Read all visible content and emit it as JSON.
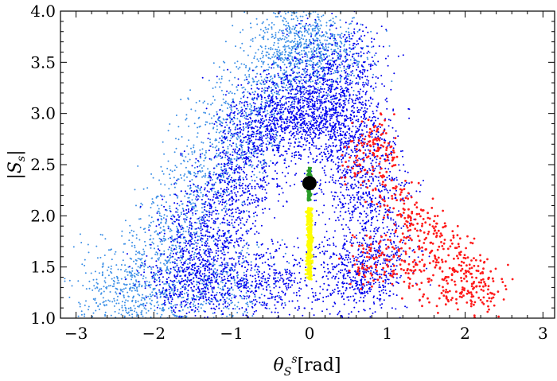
{
  "chart_data": {
    "type": "scatter",
    "title": "",
    "xlabel": {
      "symbol": "θ",
      "sub": "S",
      "sup": "s",
      "unit": "[rad]"
    },
    "ylabel": {
      "prefix": "|",
      "symbol": "S",
      "sub": "s",
      "suffix": "|"
    },
    "xlim": [
      -3.2,
      3.15
    ],
    "ylim": [
      1.0,
      4.0
    ],
    "xticks": [
      -3,
      -2,
      -1,
      0,
      1,
      2,
      3
    ],
    "xtick_labels": [
      "−3",
      "−2",
      "−1",
      "0",
      "1",
      "2",
      "3"
    ],
    "yticks": [
      1.0,
      1.5,
      2.0,
      2.5,
      3.0,
      3.5,
      4.0
    ],
    "ytick_labels": [
      "1.0",
      "1.5",
      "2.0",
      "2.5",
      "3.0",
      "3.5",
      "4.0"
    ],
    "grid": false,
    "legend": "none",
    "series": [
      {
        "color": "#3a8ee6",
        "marker": "dot",
        "description_points": [
          [
            -2.45,
            1.1
          ],
          [
            -2.3,
            1.35
          ],
          [
            -1.8,
            1.7
          ],
          [
            -1.5,
            2.1
          ],
          [
            -1.2,
            2.5
          ],
          [
            -0.9,
            2.85
          ],
          [
            -0.6,
            3.2
          ],
          [
            -0.3,
            3.55
          ],
          [
            -0.05,
            3.75
          ],
          [
            0.1,
            3.7
          ],
          [
            0.2,
            3.5
          ],
          [
            -1.7,
            1.25
          ],
          [
            -1.0,
            1.3
          ]
        ]
      },
      {
        "color": "#0000ee",
        "marker": "dot",
        "description_points": [
          [
            -1.6,
            1.4
          ],
          [
            -1.3,
            1.9
          ],
          [
            -1.0,
            2.3
          ],
          [
            -0.7,
            2.75
          ],
          [
            -0.4,
            3.0
          ],
          [
            -0.1,
            3.1
          ],
          [
            0.2,
            3.0
          ],
          [
            0.5,
            2.6
          ],
          [
            0.7,
            2.2
          ],
          [
            0.75,
            1.6
          ],
          [
            0.6,
            1.35
          ],
          [
            -0.5,
            1.35
          ],
          [
            -1.2,
            1.45
          ],
          [
            0.45,
            2.95
          ],
          [
            0.4,
            3.5
          ]
        ]
      },
      {
        "color": "#ff1a1a",
        "marker": "dot",
        "description_points": [
          [
            0.7,
            2.45
          ],
          [
            0.8,
            2.75
          ],
          [
            0.9,
            2.65
          ],
          [
            1.1,
            2.2
          ],
          [
            1.3,
            2.0
          ],
          [
            1.5,
            1.85
          ],
          [
            1.7,
            1.7
          ],
          [
            1.9,
            1.55
          ],
          [
            2.1,
            1.4
          ],
          [
            2.3,
            1.25
          ],
          [
            1.6,
            1.35
          ],
          [
            1.2,
            1.5
          ],
          [
            0.95,
            1.65
          ],
          [
            0.75,
            1.55
          ],
          [
            2.0,
            1.2
          ]
        ]
      },
      {
        "color": "#2a9d2a",
        "marker": "dot",
        "description_points": [
          [
            -0.02,
            2.15
          ],
          [
            0.0,
            2.47
          ],
          [
            0.0,
            2.3
          ]
        ]
      },
      {
        "color": "#ffff00",
        "marker": "dot",
        "description_points": [
          [
            0.0,
            1.38
          ],
          [
            0.0,
            2.08
          ],
          [
            0.0,
            1.7
          ]
        ]
      },
      {
        "color": "#000000",
        "marker": "large-circle",
        "description_points": [
          [
            0.0,
            2.32
          ]
        ]
      }
    ]
  }
}
